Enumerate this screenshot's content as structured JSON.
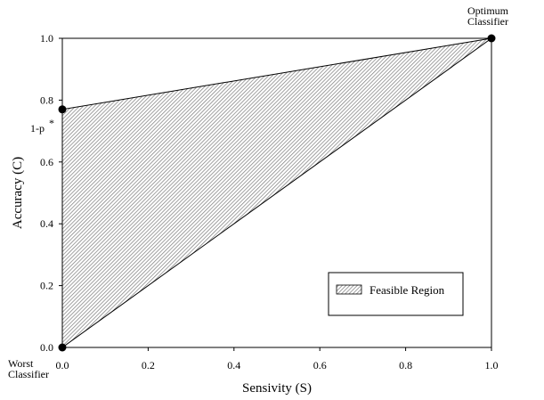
{
  "chart_data": {
    "type": "area",
    "title": "",
    "xlabel": "Sensivity (S)",
    "ylabel": "Accuracy (C)",
    "xlim": [
      0.0,
      1.0
    ],
    "ylim": [
      0.0,
      1.0
    ],
    "x_ticks": [
      "0.0",
      "0.2",
      "0.4",
      "0.6",
      "0.8",
      "1.0"
    ],
    "y_ticks": [
      "0.0",
      "0.2",
      "0.4",
      "0.6",
      "0.8",
      "1.0"
    ],
    "grid": false,
    "region": {
      "name": "Feasible Region",
      "fill": "hatched",
      "vertices": [
        {
          "x": 0.0,
          "y": 0.0
        },
        {
          "x": 0.0,
          "y": 0.77
        },
        {
          "x": 1.0,
          "y": 1.0
        }
      ]
    },
    "points": [
      {
        "x": 1.0,
        "y": 1.0,
        "label_lines": [
          "Optimum",
          "Classifier"
        ]
      },
      {
        "x": 0.0,
        "y": 0.77,
        "label_lines": [
          "1-p",
          "*"
        ]
      },
      {
        "x": 0.0,
        "y": 0.0,
        "label_lines": [
          "Worst",
          "Classifier"
        ]
      }
    ],
    "legend": {
      "position": "bottom-right",
      "entries": [
        "Feasible Region"
      ]
    }
  }
}
